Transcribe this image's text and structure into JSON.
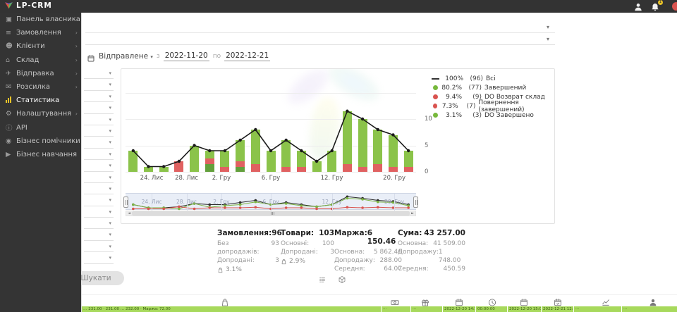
{
  "topbar": {
    "brand": "LP-CRM",
    "notification_badge": "1"
  },
  "sidebar": {
    "items": [
      {
        "label": "Панель власника",
        "icon": "dashboard-icon",
        "chevron": false,
        "active": false
      },
      {
        "label": "Замовлення",
        "icon": "orders-icon",
        "chevron": true,
        "active": false
      },
      {
        "label": "Клієнти",
        "icon": "clients-icon",
        "chevron": true,
        "active": false
      },
      {
        "label": "Склад",
        "icon": "warehouse-icon",
        "chevron": true,
        "active": false
      },
      {
        "label": "Відправка",
        "icon": "shipping-icon",
        "chevron": true,
        "active": false
      },
      {
        "label": "Розсилка",
        "icon": "mailing-icon",
        "chevron": true,
        "active": false
      },
      {
        "label": "Статистика",
        "icon": "stats-icon",
        "chevron": false,
        "active": true
      },
      {
        "label": "Налаштування",
        "icon": "settings-icon",
        "chevron": true,
        "active": false
      },
      {
        "label": "API",
        "icon": "api-icon",
        "chevron": false,
        "active": false
      },
      {
        "label": "Бізнес помічники",
        "icon": "helpers-icon",
        "chevron": false,
        "active": false
      },
      {
        "label": "Бізнес навчання",
        "icon": "training-icon",
        "chevron": false,
        "active": false
      }
    ]
  },
  "filters": {
    "top_select_count": 2,
    "side_select_count": 17,
    "date": {
      "type_label": "Відправлене",
      "from_label": "з",
      "from_value": "2022-11-20",
      "to_label": "по",
      "to_value": "2022-12-21"
    },
    "search_label": "Шукати"
  },
  "chart_data": {
    "type": "bar",
    "stacked": true,
    "line_overlay": true,
    "title": "",
    "xlabel": "",
    "ylabel": "",
    "ylim": [
      0,
      15
    ],
    "yticks": [
      0,
      5,
      10
    ],
    "grid": true,
    "legend_position": "top-right",
    "x": [
      1,
      2,
      3,
      4,
      5,
      6,
      7,
      8,
      9,
      10,
      11,
      12,
      13,
      14,
      15,
      16,
      17,
      18,
      19
    ],
    "x_tick_labels": [
      {
        "label": "24. Лис",
        "pos": 0.09
      },
      {
        "label": "28. Лис",
        "pos": 0.21
      },
      {
        "label": "2. Гру",
        "pos": 0.33
      },
      {
        "label": "6. Гру",
        "pos": 0.5
      },
      {
        "label": "12. Гру",
        "pos": 0.71
      },
      {
        "label": "20. Гру",
        "pos": 0.925
      }
    ],
    "series": [
      {
        "name": "DO Завершено",
        "type": "bar",
        "color": "#63a03c",
        "values": [
          0,
          0,
          0,
          0,
          0,
          1.5,
          0,
          1,
          0,
          0,
          0,
          0,
          0,
          0,
          0,
          0,
          0,
          0,
          0
        ]
      },
      {
        "name": "Повернення / DO Возврат склад",
        "type": "bar",
        "color": "#e06161",
        "values": [
          0,
          0,
          0,
          2,
          0,
          1,
          1,
          1,
          1.5,
          0,
          1,
          1,
          0,
          0,
          1.5,
          1,
          1.5,
          1,
          1
        ]
      },
      {
        "name": "Завершений",
        "type": "bar",
        "color": "#8bc34a",
        "values": [
          4,
          1,
          1,
          0,
          5,
          1.5,
          3,
          4,
          6.5,
          4,
          5,
          3,
          2,
          4,
          10,
          9,
          6.5,
          6,
          3
        ]
      },
      {
        "name": "Всі",
        "type": "line",
        "color": "#1a1a1a",
        "values": [
          4,
          1,
          1,
          2,
          5,
          4,
          4,
          6,
          8,
          4,
          6,
          4,
          2,
          4,
          11.5,
          10,
          8,
          7,
          4
        ]
      }
    ],
    "legend": [
      {
        "swatch": "line",
        "color": "#333333",
        "pct": "100%",
        "count": "(96)",
        "label": "Всі"
      },
      {
        "swatch": "dot",
        "color": "#77b93c",
        "pct": "80.2%",
        "count": "(77)",
        "label": "Завершений"
      },
      {
        "swatch": "dot",
        "color": "#d9534f",
        "pct": "9.4%",
        "count": "(9)",
        "label": "DO Возврат склад"
      },
      {
        "swatch": "dot",
        "color": "#d9534f",
        "pct": "7.3%",
        "count": "(7)",
        "label": "Повернення (завершений)"
      },
      {
        "swatch": "dot",
        "color": "#77b93c",
        "pct": "3.1%",
        "count": "(3)",
        "label": "DO Завершено"
      }
    ]
  },
  "summary": {
    "columns": [
      {
        "title": "Замовлення:",
        "value": "96",
        "rows": [
          [
            "Без допродажів:",
            "93"
          ],
          [
            "Допродані:",
            "3"
          ]
        ],
        "percent": "3.1%"
      },
      {
        "title": "Товари:",
        "value": "103",
        "rows": [
          [
            "Основні:",
            "100"
          ],
          [
            "Допродані:",
            "3"
          ]
        ],
        "percent": "2.9%"
      },
      {
        "title": "Маржа:",
        "value": "6 150.46",
        "rows": [
          [
            "Основна:",
            "5 862.46"
          ],
          [
            "Допродажу:",
            "288.00"
          ],
          [
            "Середня:",
            "64.07"
          ]
        ],
        "percent": null
      },
      {
        "title": "Сума:",
        "value": "43 257.00",
        "rows": [
          [
            "Основна:",
            "41 509.00"
          ],
          [
            "Допродажу:",
            "1 748.00"
          ],
          [
            "Середня:",
            "450.59"
          ]
        ],
        "percent": null
      }
    ]
  },
  "view_toggles": {
    "icons": [
      "list-icon",
      "cube-icon"
    ]
  },
  "footer_table": {
    "header_icons": [
      "bag-icon",
      "money-icon",
      "gift-icon",
      "calendar-icon",
      "clock-icon",
      "calendar-icon",
      "calendar-check-icon",
      "area-chart-icon",
      "person-icon"
    ],
    "row_cells": [
      "… 231.00 · 231.00 … 232.00 · Маржа: 72.00",
      "···",
      "···",
      "2022-12-20 14:10:06",
      "00:00:00",
      "2022-12-20 15:02:20",
      "2022-12-21 12:07:05",
      "···",
      "···"
    ]
  }
}
